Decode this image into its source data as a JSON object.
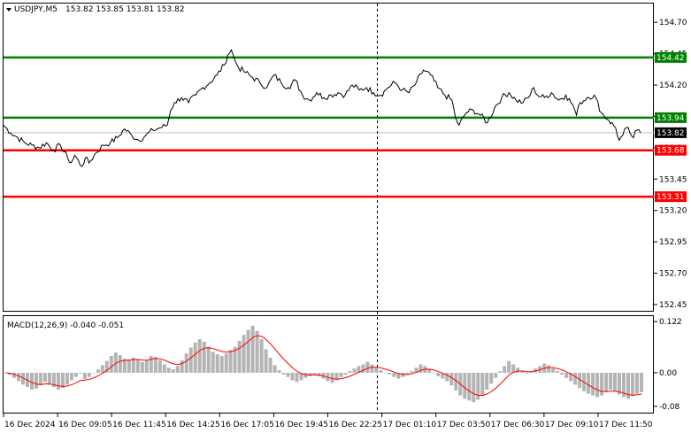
{
  "header": {
    "symbol_label": "USDJPY,M5",
    "ohlc_label": "153.82 153.85 153.81 153.82"
  },
  "macd": {
    "label": "MACD(12,26,9) -0.040 -0.051",
    "axis_ticks": [
      "0.122",
      "0.00",
      "-0.08"
    ],
    "axis_values": [
      0.122,
      0.0,
      -0.08
    ],
    "range": [
      -0.095,
      0.135
    ],
    "histogram_color": "#b4b4b4",
    "signal_color": "#ff0000"
  },
  "colors": {
    "price_line": "#000000",
    "support": "#ff0000",
    "resistance": "#008000",
    "current_price_bg": "#000000",
    "vline": "#000000"
  },
  "chart_data": {
    "type": "line",
    "title": "USDJPY,M5",
    "ylim": [
      152.4,
      154.85
    ],
    "y_ticks": [
      154.7,
      154.45,
      154.2,
      153.95,
      153.7,
      153.45,
      153.2,
      152.95,
      152.7,
      152.45
    ],
    "y_tick_labels": [
      "154.70",
      "154.45",
      "154.20",
      "153.95",
      "153.70",
      "153.45",
      "153.20",
      "152.95",
      "152.70",
      "152.45"
    ],
    "x_tick_labels": [
      "16 Dec 2024",
      "16 Dec 09:05",
      "16 Dec 11:45",
      "16 Dec 14:25",
      "16 Dec 17:05",
      "16 Dec 19:45",
      "16 Dec 22:25",
      "17 Dec 01:10",
      "17 Dec 03:50",
      "17 Dec 06:30",
      "17 Dec 09:10",
      "17 Dec 11:50"
    ],
    "levels": [
      {
        "value": 154.42,
        "label": "154.42",
        "kind": "resistance"
      },
      {
        "value": 153.94,
        "label": "153.94",
        "kind": "resistance"
      },
      {
        "value": 153.68,
        "label": "153.68",
        "kind": "support"
      },
      {
        "value": 153.31,
        "label": "153.31",
        "kind": "support"
      }
    ],
    "current_price": {
      "value": 153.82,
      "label": "153.82"
    },
    "price_series": {
      "x_range": [
        0,
        180
      ],
      "points": [
        [
          0,
          153.88
        ],
        [
          2,
          153.82
        ],
        [
          4,
          153.78
        ],
        [
          6,
          153.74
        ],
        [
          8,
          153.72
        ],
        [
          10,
          153.7
        ],
        [
          12,
          153.74
        ],
        [
          14,
          153.68
        ],
        [
          16,
          153.72
        ],
        [
          18,
          153.62
        ],
        [
          19,
          153.58
        ],
        [
          20,
          153.64
        ],
        [
          22,
          153.55
        ],
        [
          23,
          153.62
        ],
        [
          24,
          153.58
        ],
        [
          26,
          153.66
        ],
        [
          28,
          153.72
        ],
        [
          30,
          153.74
        ],
        [
          32,
          153.78
        ],
        [
          34,
          153.85
        ],
        [
          36,
          153.8
        ],
        [
          38,
          153.76
        ],
        [
          40,
          153.8
        ],
        [
          42,
          153.84
        ],
        [
          44,
          153.86
        ],
        [
          46,
          153.88
        ],
        [
          47,
          154.0
        ],
        [
          48,
          154.06
        ],
        [
          50,
          154.1
        ],
        [
          52,
          154.06
        ],
        [
          54,
          154.12
        ],
        [
          56,
          154.18
        ],
        [
          58,
          154.22
        ],
        [
          60,
          154.28
        ],
        [
          62,
          154.36
        ],
        [
          63,
          154.44
        ],
        [
          64,
          154.48
        ],
        [
          65,
          154.4
        ],
        [
          66,
          154.34
        ],
        [
          68,
          154.3
        ],
        [
          70,
          154.26
        ],
        [
          72,
          154.22
        ],
        [
          74,
          154.18
        ],
        [
          76,
          154.28
        ],
        [
          78,
          154.22
        ],
        [
          80,
          154.18
        ],
        [
          82,
          154.24
        ],
        [
          84,
          154.12
        ],
        [
          86,
          154.08
        ],
        [
          88,
          154.14
        ],
        [
          90,
          154.1
        ],
        [
          92,
          154.12
        ],
        [
          94,
          154.14
        ],
        [
          96,
          154.12
        ],
        [
          98,
          154.2
        ],
        [
          100,
          154.16
        ],
        [
          102,
          154.18
        ],
        [
          104,
          154.14
        ],
        [
          106,
          154.12
        ],
        [
          108,
          154.18
        ],
        [
          110,
          154.22
        ],
        [
          112,
          154.16
        ],
        [
          114,
          154.14
        ],
        [
          116,
          154.22
        ],
        [
          118,
          154.32
        ],
        [
          120,
          154.28
        ],
        [
          122,
          154.18
        ],
        [
          124,
          154.12
        ],
        [
          126,
          154.08
        ],
        [
          127,
          153.94
        ],
        [
          128,
          153.88
        ],
        [
          130,
          153.98
        ],
        [
          132,
          154.0
        ],
        [
          134,
          153.96
        ],
        [
          136,
          153.9
        ],
        [
          138,
          154.02
        ],
        [
          140,
          154.1
        ],
        [
          142,
          154.14
        ],
        [
          144,
          154.08
        ],
        [
          146,
          154.06
        ],
        [
          148,
          154.12
        ],
        [
          149,
          154.18
        ],
        [
          150,
          154.12
        ],
        [
          152,
          154.1
        ],
        [
          154,
          154.14
        ],
        [
          156,
          154.08
        ],
        [
          158,
          154.12
        ],
        [
          160,
          154.04
        ],
        [
          161,
          153.96
        ],
        [
          162,
          154.06
        ],
        [
          164,
          154.1
        ],
        [
          166,
          154.12
        ],
        [
          168,
          153.98
        ],
        [
          170,
          153.92
        ],
        [
          172,
          153.86
        ],
        [
          173,
          153.76
        ],
        [
          174,
          153.8
        ],
        [
          175,
          153.86
        ],
        [
          176,
          153.82
        ],
        [
          177,
          153.78
        ],
        [
          178,
          153.84
        ],
        [
          179,
          153.82
        ]
      ]
    },
    "macd_histogram": [
      0.0,
      -0.005,
      -0.012,
      -0.02,
      -0.028,
      -0.034,
      -0.04,
      -0.038,
      -0.03,
      -0.022,
      -0.028,
      -0.034,
      -0.04,
      -0.036,
      -0.028,
      -0.018,
      -0.01,
      -0.002,
      -0.015,
      -0.01,
      0.0,
      0.008,
      0.018,
      0.028,
      0.04,
      0.048,
      0.042,
      0.034,
      0.032,
      0.036,
      0.032,
      0.026,
      0.03,
      0.04,
      0.038,
      0.03,
      0.02,
      0.012,
      0.008,
      0.016,
      0.03,
      0.046,
      0.06,
      0.072,
      0.08,
      0.074,
      0.062,
      0.05,
      0.044,
      0.04,
      0.046,
      0.054,
      0.062,
      0.076,
      0.09,
      0.102,
      0.112,
      0.1,
      0.08,
      0.056,
      0.036,
      0.018,
      0.006,
      -0.004,
      -0.01,
      -0.018,
      -0.022,
      -0.018,
      -0.012,
      -0.008,
      -0.004,
      -0.008,
      -0.014,
      -0.02,
      -0.024,
      -0.018,
      -0.01,
      -0.004,
      0.004,
      0.01,
      0.016,
      0.02,
      0.026,
      0.02,
      0.012,
      0.006,
      0.0,
      -0.004,
      -0.01,
      -0.014,
      -0.01,
      -0.004,
      0.004,
      0.012,
      0.02,
      0.016,
      0.008,
      0.0,
      -0.008,
      -0.014,
      -0.02,
      -0.03,
      -0.042,
      -0.054,
      -0.062,
      -0.066,
      -0.07,
      -0.064,
      -0.054,
      -0.04,
      -0.026,
      -0.012,
      0.004,
      0.016,
      0.028,
      0.02,
      0.012,
      0.004,
      -0.002,
      0.004,
      0.01,
      0.016,
      0.022,
      0.018,
      0.01,
      0.004,
      -0.004,
      -0.012,
      -0.02,
      -0.028,
      -0.036,
      -0.044,
      -0.05,
      -0.054,
      -0.058,
      -0.054,
      -0.046,
      -0.04,
      -0.044,
      -0.052,
      -0.058,
      -0.062,
      -0.056,
      -0.05,
      -0.046
    ]
  }
}
